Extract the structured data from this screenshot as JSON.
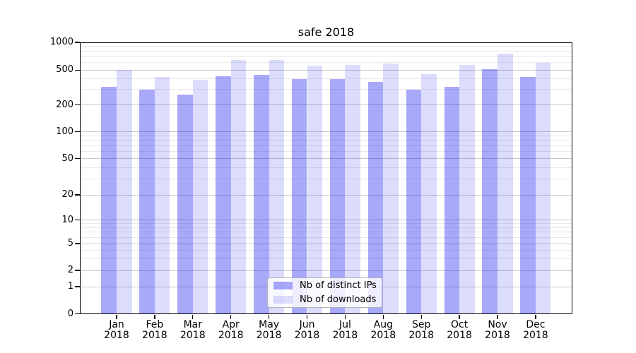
{
  "figure": {
    "title": "safe 2018"
  },
  "legend": {
    "items": [
      {
        "label": "Nb of distinct IPs"
      },
      {
        "label": "Nb of downloads"
      }
    ]
  },
  "chart_data": {
    "type": "bar",
    "title": "safe 2018",
    "categories": [
      "Jan 2018",
      "Feb 2018",
      "Mar 2018",
      "Apr 2018",
      "May 2018",
      "Jun 2018",
      "Jul 2018",
      "Aug 2018",
      "Sep 2018",
      "Oct 2018",
      "Nov 2018",
      "Dec 2018"
    ],
    "series": [
      {
        "name": "Nb of distinct IPs",
        "color": "#a9a9fa",
        "fill": "rgba(17,17,240,0.36)",
        "values": [
          325,
          297,
          262,
          424,
          442,
          396,
          396,
          368,
          300,
          325,
          509,
          416
        ]
      },
      {
        "name": "Nb of downloads",
        "color": "#dcdcfd",
        "fill": "rgba(17,17,240,0.15)",
        "values": [
          505,
          420,
          390,
          642,
          648,
          558,
          572,
          586,
          452,
          572,
          750,
          597
        ]
      }
    ],
    "xlabel": "",
    "ylabel": "",
    "y_axis": {
      "scale": "symlog",
      "ylim": [
        0,
        1000
      ],
      "ticks": [
        0,
        1,
        2,
        5,
        10,
        20,
        50,
        100,
        200,
        500,
        1000
      ],
      "minor_gridlines": [
        3,
        4,
        6,
        7,
        8,
        9,
        30,
        40,
        60,
        70,
        80,
        90,
        300,
        400,
        600,
        700,
        800,
        900
      ]
    },
    "grid": "both",
    "legend_position": "lower center",
    "colors": {
      "axis": "#000000",
      "grid_major": "#c9c9c9",
      "grid_minor": "#e9e9e9"
    }
  }
}
